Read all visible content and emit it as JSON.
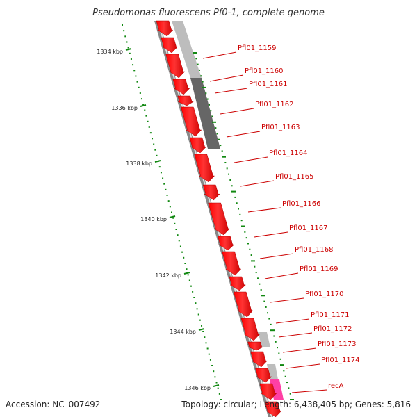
{
  "title": "Pseudomonas fluorescens Pf0-1, complete genome",
  "footer": {
    "accession": "Accession: NC_007492",
    "summary": "Topology: circular; Length: 6,438,405 bp; Genes: 5,816"
  },
  "colors": {
    "gene_forward": "#ff0000",
    "gene_highlight": "#ff1493",
    "backbone": "#777777",
    "gc_light": "#bbbbbb",
    "gc_dark": "#555555",
    "tick": "#118811",
    "label": "#cc0000"
  },
  "kbp_ticks": [
    {
      "label": "1334 kbp"
    },
    {
      "label": "1336 kbp"
    },
    {
      "label": "1338 kbp"
    },
    {
      "label": "1340 kbp"
    },
    {
      "label": "1342 kbp"
    },
    {
      "label": "1344 kbp"
    },
    {
      "label": "1346 kbp"
    }
  ],
  "genes": [
    {
      "label": "Pfl01_1159"
    },
    {
      "label": "Pfl01_1160"
    },
    {
      "label": "Pfl01_1161"
    },
    {
      "label": "Pfl01_1162"
    },
    {
      "label": "Pfl01_1163"
    },
    {
      "label": "Pfl01_1164"
    },
    {
      "label": "Pfl01_1165"
    },
    {
      "label": "Pfl01_1166"
    },
    {
      "label": "Pfl01_1167"
    },
    {
      "label": "Pfl01_1168"
    },
    {
      "label": "Pfl01_1169"
    },
    {
      "label": "Pfl01_1170"
    },
    {
      "label": "Pfl01_1171"
    },
    {
      "label": "Pfl01_1172"
    },
    {
      "label": "Pfl01_1173"
    },
    {
      "label": "Pfl01_1174"
    },
    {
      "label": "recA"
    }
  ]
}
